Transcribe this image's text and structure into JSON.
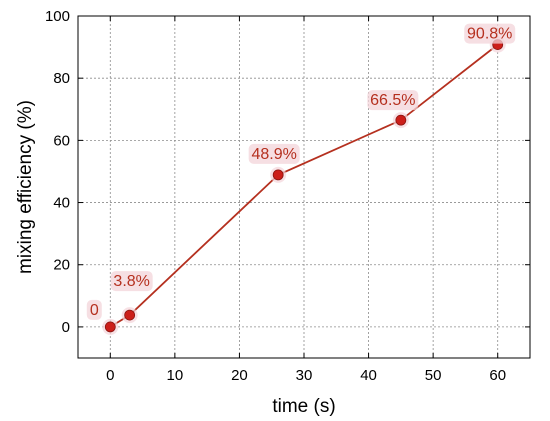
{
  "chart_data": {
    "type": "line",
    "xlabel": "time (s)",
    "ylabel": "mixing efficiency (%)",
    "xlim": [
      -5,
      65
    ],
    "ylim": [
      -10,
      100
    ],
    "grid": true,
    "x_ticks": [
      "0",
      "10",
      "20",
      "30",
      "40",
      "50",
      "60"
    ],
    "y_ticks": [
      "0",
      "20",
      "40",
      "60",
      "80",
      "100"
    ],
    "series": [
      {
        "x": [
          0,
          3,
          26,
          45,
          60
        ],
        "y": [
          0,
          3.8,
          48.9,
          66.5,
          90.8
        ],
        "labels": [
          "0",
          "3.8%",
          "48.9%",
          "66.5%",
          "90.8%"
        ]
      }
    ],
    "colors": {
      "line": "#b5301f",
      "marker": "#cc1f1a",
      "label": "#b5301f",
      "label_bg": "#f3d4da",
      "grid": "#8c8c8c"
    }
  }
}
